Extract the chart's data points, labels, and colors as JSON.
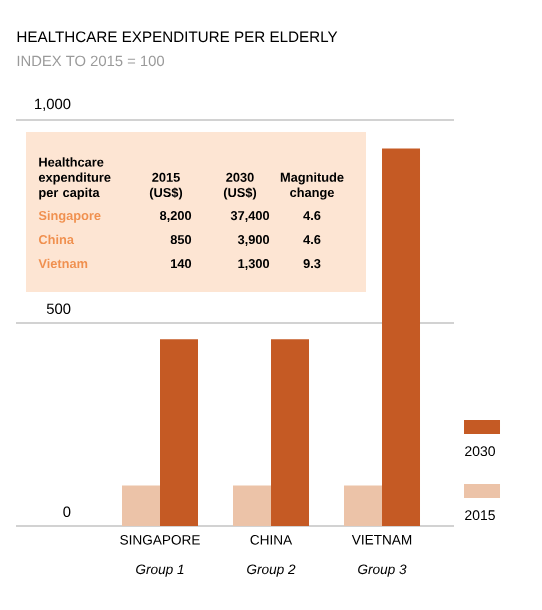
{
  "chart_data": {
    "type": "bar",
    "title": "HEALTHCARE EXPENDITURE PER ELDERLY",
    "subtitle": "INDEX TO 2015 = 100",
    "categories": [
      "SINGAPORE",
      "CHINA",
      "VIETNAM"
    ],
    "series": [
      {
        "name": "2015",
        "color": "#ecc3a8",
        "values": [
          100,
          100,
          100
        ]
      },
      {
        "name": "2030",
        "color": "#c55a24",
        "values": [
          460,
          460,
          930
        ]
      }
    ],
    "ylim": [
      0,
      1000
    ],
    "yticks": [
      0,
      500,
      {
        "value": 1000,
        "label": "1,000"
      }
    ],
    "grid": "y",
    "legend": "right",
    "annotations": [
      "Group 1",
      "Group 2",
      "Group 3",
      "Healthcare expenditure per capita",
      "2015 (US$)",
      "2030 (US$)",
      "Magnitude change",
      "Singapore",
      "8,200",
      "37,400",
      "4.6",
      "China",
      "850",
      "3,900",
      "4.6",
      "Vietnam",
      "140",
      "1,300",
      "9.3"
    ]
  }
}
